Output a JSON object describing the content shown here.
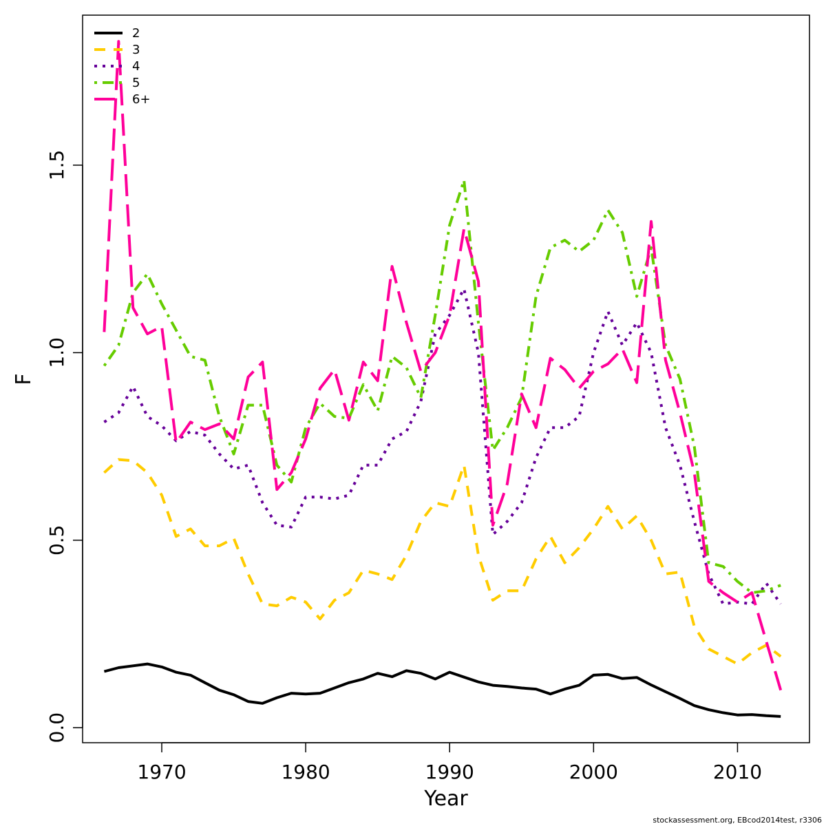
{
  "chart_data": {
    "type": "line",
    "title": "",
    "xlabel": "Year",
    "ylabel": "F",
    "xlim": [
      1964.5,
      2015
    ],
    "ylim": [
      -0.04,
      1.9
    ],
    "x_ticks": [
      "1970",
      "1980",
      "1990",
      "2000",
      "2010"
    ],
    "y_ticks": [
      "0.0",
      "0.5",
      "1.0",
      "1.5"
    ],
    "legend_position": "top-left",
    "x": [
      1966,
      1967,
      1968,
      1969,
      1970,
      1971,
      1972,
      1973,
      1974,
      1975,
      1976,
      1977,
      1978,
      1979,
      1980,
      1981,
      1982,
      1983,
      1984,
      1985,
      1986,
      1987,
      1988,
      1989,
      1990,
      1991,
      1992,
      1993,
      1994,
      1995,
      1996,
      1997,
      1998,
      1999,
      2000,
      2001,
      2002,
      2003,
      2004,
      2005,
      2006,
      2007,
      2008,
      2009,
      2010,
      2011,
      2012,
      2013
    ],
    "series": [
      {
        "name": "2",
        "color": "#000000",
        "dash": "solid",
        "values": [
          0.15,
          0.16,
          0.165,
          0.17,
          0.162,
          0.148,
          0.14,
          0.12,
          0.1,
          0.088,
          0.07,
          0.065,
          0.08,
          0.092,
          0.09,
          0.092,
          0.106,
          0.12,
          0.13,
          0.145,
          0.136,
          0.152,
          0.145,
          0.13,
          0.148,
          0.135,
          0.122,
          0.113,
          0.11,
          0.106,
          0.103,
          0.09,
          0.103,
          0.113,
          0.14,
          0.142,
          0.131,
          0.134,
          0.114,
          0.096,
          0.078,
          0.059,
          0.048,
          0.04,
          0.034,
          0.035,
          0.032,
          0.03
        ]
      },
      {
        "name": "3",
        "color": "#FFCC00",
        "dash": "dashed",
        "values": [
          0.68,
          0.715,
          0.712,
          0.68,
          0.62,
          0.51,
          0.53,
          0.485,
          0.485,
          0.505,
          0.41,
          0.33,
          0.325,
          0.348,
          0.335,
          0.29,
          0.34,
          0.36,
          0.42,
          0.41,
          0.395,
          0.46,
          0.55,
          0.6,
          0.59,
          0.7,
          0.46,
          0.34,
          0.365,
          0.365,
          0.45,
          0.51,
          0.44,
          0.48,
          0.53,
          0.59,
          0.53,
          0.565,
          0.5,
          0.41,
          0.415,
          0.27,
          0.21,
          0.19,
          0.17,
          0.2,
          0.22,
          0.19
        ]
      },
      {
        "name": "4",
        "color": "#660099",
        "dash": "dotted",
        "values": [
          0.815,
          0.84,
          0.91,
          0.83,
          0.805,
          0.765,
          0.79,
          0.78,
          0.73,
          0.69,
          0.7,
          0.6,
          0.54,
          0.535,
          0.615,
          0.615,
          0.61,
          0.62,
          0.7,
          0.7,
          0.77,
          0.79,
          0.87,
          1.05,
          1.1,
          1.17,
          1.0,
          0.515,
          0.55,
          0.6,
          0.72,
          0.8,
          0.8,
          0.83,
          1.0,
          1.11,
          1.02,
          1.08,
          1.0,
          0.8,
          0.7,
          0.55,
          0.41,
          0.33,
          0.335,
          0.33,
          0.385,
          0.33
        ]
      },
      {
        "name": "5",
        "color": "#66CC00",
        "dash": "dotdash",
        "values": [
          0.965,
          1.02,
          1.16,
          1.21,
          1.13,
          1.06,
          0.99,
          0.98,
          0.83,
          0.73,
          0.86,
          0.86,
          0.7,
          0.655,
          0.8,
          0.865,
          0.83,
          0.825,
          0.915,
          0.845,
          0.99,
          0.96,
          0.88,
          1.1,
          1.34,
          1.46,
          1.08,
          0.74,
          0.8,
          0.88,
          1.15,
          1.28,
          1.3,
          1.27,
          1.3,
          1.38,
          1.32,
          1.15,
          1.28,
          1.02,
          0.93,
          0.75,
          0.44,
          0.43,
          0.39,
          0.36,
          0.365,
          0.38
        ]
      },
      {
        "name": "6+",
        "color": "#FF0099",
        "dash": "longdash",
        "values": [
          1.055,
          1.83,
          1.12,
          1.05,
          1.07,
          0.76,
          0.815,
          0.795,
          0.81,
          0.77,
          0.935,
          0.975,
          0.635,
          0.68,
          0.77,
          0.905,
          0.955,
          0.82,
          0.975,
          0.925,
          1.23,
          1.08,
          0.95,
          1.0,
          1.1,
          1.33,
          1.19,
          0.54,
          0.65,
          0.89,
          0.8,
          0.985,
          0.955,
          0.905,
          0.95,
          0.97,
          1.01,
          0.92,
          1.35,
          0.98,
          0.84,
          0.68,
          0.39,
          0.36,
          0.335,
          0.36,
          0.23,
          0.1
        ]
      }
    ]
  },
  "footer_text": "stockassessment.org, EBcod2014test, r3306"
}
